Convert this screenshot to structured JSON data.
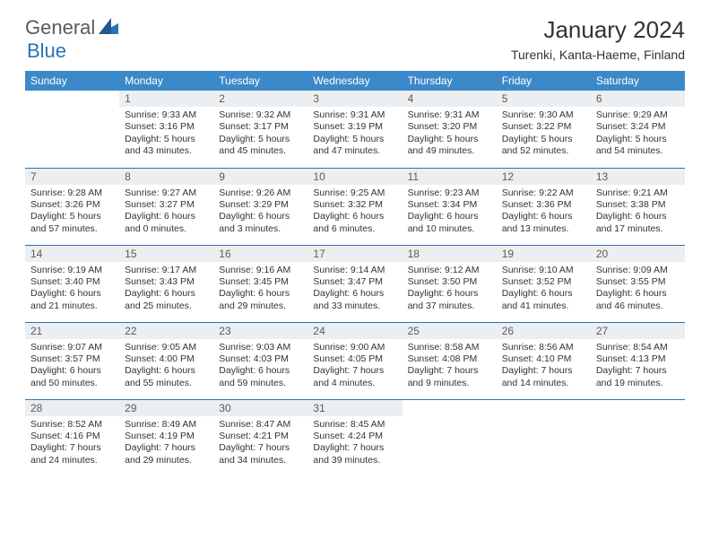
{
  "logo": {
    "general": "General",
    "blue": "Blue"
  },
  "title": "January 2024",
  "location": "Turenki, Kanta-Haeme, Finland",
  "colors": {
    "header_bg": "#3b89c9",
    "header_text": "#ffffff",
    "daynum_bg": "#eceff1",
    "rule": "#2a72b5",
    "logo_gray": "#5a5a5a",
    "logo_blue": "#2a72b5"
  },
  "weekdays": [
    "Sunday",
    "Monday",
    "Tuesday",
    "Wednesday",
    "Thursday",
    "Friday",
    "Saturday"
  ],
  "weeks": [
    [
      null,
      {
        "n": "1",
        "sr": "9:33 AM",
        "ss": "3:16 PM",
        "dl": "5 hours and 43 minutes."
      },
      {
        "n": "2",
        "sr": "9:32 AM",
        "ss": "3:17 PM",
        "dl": "5 hours and 45 minutes."
      },
      {
        "n": "3",
        "sr": "9:31 AM",
        "ss": "3:19 PM",
        "dl": "5 hours and 47 minutes."
      },
      {
        "n": "4",
        "sr": "9:31 AM",
        "ss": "3:20 PM",
        "dl": "5 hours and 49 minutes."
      },
      {
        "n": "5",
        "sr": "9:30 AM",
        "ss": "3:22 PM",
        "dl": "5 hours and 52 minutes."
      },
      {
        "n": "6",
        "sr": "9:29 AM",
        "ss": "3:24 PM",
        "dl": "5 hours and 54 minutes."
      }
    ],
    [
      {
        "n": "7",
        "sr": "9:28 AM",
        "ss": "3:26 PM",
        "dl": "5 hours and 57 minutes."
      },
      {
        "n": "8",
        "sr": "9:27 AM",
        "ss": "3:27 PM",
        "dl": "6 hours and 0 minutes."
      },
      {
        "n": "9",
        "sr": "9:26 AM",
        "ss": "3:29 PM",
        "dl": "6 hours and 3 minutes."
      },
      {
        "n": "10",
        "sr": "9:25 AM",
        "ss": "3:32 PM",
        "dl": "6 hours and 6 minutes."
      },
      {
        "n": "11",
        "sr": "9:23 AM",
        "ss": "3:34 PM",
        "dl": "6 hours and 10 minutes."
      },
      {
        "n": "12",
        "sr": "9:22 AM",
        "ss": "3:36 PM",
        "dl": "6 hours and 13 minutes."
      },
      {
        "n": "13",
        "sr": "9:21 AM",
        "ss": "3:38 PM",
        "dl": "6 hours and 17 minutes."
      }
    ],
    [
      {
        "n": "14",
        "sr": "9:19 AM",
        "ss": "3:40 PM",
        "dl": "6 hours and 21 minutes."
      },
      {
        "n": "15",
        "sr": "9:17 AM",
        "ss": "3:43 PM",
        "dl": "6 hours and 25 minutes."
      },
      {
        "n": "16",
        "sr": "9:16 AM",
        "ss": "3:45 PM",
        "dl": "6 hours and 29 minutes."
      },
      {
        "n": "17",
        "sr": "9:14 AM",
        "ss": "3:47 PM",
        "dl": "6 hours and 33 minutes."
      },
      {
        "n": "18",
        "sr": "9:12 AM",
        "ss": "3:50 PM",
        "dl": "6 hours and 37 minutes."
      },
      {
        "n": "19",
        "sr": "9:10 AM",
        "ss": "3:52 PM",
        "dl": "6 hours and 41 minutes."
      },
      {
        "n": "20",
        "sr": "9:09 AM",
        "ss": "3:55 PM",
        "dl": "6 hours and 46 minutes."
      }
    ],
    [
      {
        "n": "21",
        "sr": "9:07 AM",
        "ss": "3:57 PM",
        "dl": "6 hours and 50 minutes."
      },
      {
        "n": "22",
        "sr": "9:05 AM",
        "ss": "4:00 PM",
        "dl": "6 hours and 55 minutes."
      },
      {
        "n": "23",
        "sr": "9:03 AM",
        "ss": "4:03 PM",
        "dl": "6 hours and 59 minutes."
      },
      {
        "n": "24",
        "sr": "9:00 AM",
        "ss": "4:05 PM",
        "dl": "7 hours and 4 minutes."
      },
      {
        "n": "25",
        "sr": "8:58 AM",
        "ss": "4:08 PM",
        "dl": "7 hours and 9 minutes."
      },
      {
        "n": "26",
        "sr": "8:56 AM",
        "ss": "4:10 PM",
        "dl": "7 hours and 14 minutes."
      },
      {
        "n": "27",
        "sr": "8:54 AM",
        "ss": "4:13 PM",
        "dl": "7 hours and 19 minutes."
      }
    ],
    [
      {
        "n": "28",
        "sr": "8:52 AM",
        "ss": "4:16 PM",
        "dl": "7 hours and 24 minutes."
      },
      {
        "n": "29",
        "sr": "8:49 AM",
        "ss": "4:19 PM",
        "dl": "7 hours and 29 minutes."
      },
      {
        "n": "30",
        "sr": "8:47 AM",
        "ss": "4:21 PM",
        "dl": "7 hours and 34 minutes."
      },
      {
        "n": "31",
        "sr": "8:45 AM",
        "ss": "4:24 PM",
        "dl": "7 hours and 39 minutes."
      },
      null,
      null,
      null
    ]
  ],
  "labels": {
    "sunrise": "Sunrise:",
    "sunset": "Sunset:",
    "daylight": "Daylight:"
  }
}
